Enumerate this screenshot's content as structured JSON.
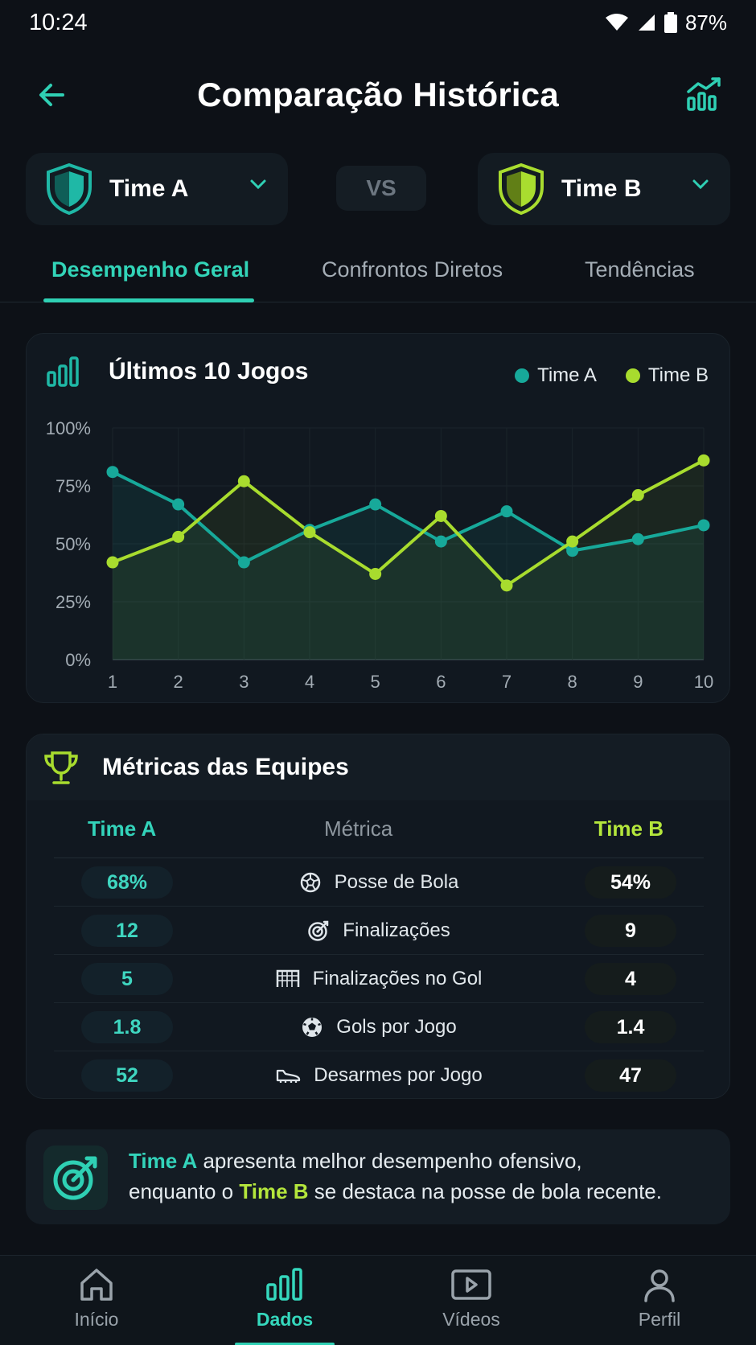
{
  "status_bar": {
    "time": "10:24",
    "battery": "87%"
  },
  "header": {
    "title": "Comparação Histórica",
    "back_icon": "arrow-left-icon",
    "action_icon": "chart-trend-icon"
  },
  "teams": {
    "a": {
      "name": "Time A",
      "color": "#1fb8a6",
      "icon": "shield-icon"
    },
    "vs_label": "VS",
    "b": {
      "name": "Time B",
      "color": "#a9dd2f",
      "icon": "shield-icon"
    }
  },
  "tabs": [
    {
      "label": "Desempenho Geral",
      "active": true
    },
    {
      "label": "Confrontos Diretos",
      "active": false
    },
    {
      "label": "Tendências",
      "active": false
    }
  ],
  "chart_card": {
    "title": "Últimos 10 Jogos",
    "icon": "bar-chart-icon",
    "legend": [
      {
        "label": "Time A",
        "color": "#17a99a"
      },
      {
        "label": "Time B",
        "color": "#a8dc2e"
      }
    ]
  },
  "chart_data": {
    "type": "line",
    "title": "Últimos 10 Jogos",
    "x": [
      1,
      2,
      3,
      4,
      5,
      6,
      7,
      8,
      9,
      10
    ],
    "y_ticks": [
      "0%",
      "25%",
      "50%",
      "75%",
      "100%"
    ],
    "ylim": [
      0,
      100
    ],
    "grid": true,
    "legend_position": "top-right",
    "series": [
      {
        "name": "Time A",
        "color": "#17a99a",
        "values": [
          81,
          67,
          42,
          56,
          67,
          51,
          64,
          47,
          52,
          58
        ]
      },
      {
        "name": "Time B",
        "color": "#a8dc2e",
        "values": [
          42,
          53,
          77,
          55,
          37,
          62,
          32,
          51,
          71,
          86
        ]
      }
    ]
  },
  "metrics": {
    "title": "Métricas das Equipes",
    "icon": "trophy-icon",
    "col_a": "Time A",
    "col_metric": "Métrica",
    "col_b": "Time B",
    "rows": [
      {
        "a": "68%",
        "label": "Posse de Bola",
        "icon": "ball-icon",
        "b": "54%"
      },
      {
        "a": "12",
        "label": "Finalizações",
        "icon": "target-icon",
        "b": "9"
      },
      {
        "a": "5",
        "label": "Finalizações no Gol",
        "icon": "goal-net-icon",
        "b": "4"
      },
      {
        "a": "1.8",
        "label": "Gols por Jogo",
        "icon": "soccer-ball-icon",
        "b": "1.4"
      },
      {
        "a": "52",
        "label": "Desarmes por Jogo",
        "icon": "cleat-icon",
        "b": "47"
      }
    ]
  },
  "insight": {
    "icon": "target-arrow-icon",
    "team_a": "Time A",
    "part1": " apresenta melhor desempenho ofensivo,",
    "part2": "enquanto o ",
    "team_b": "Time B",
    "part3": " se destaca na posse de bola recente."
  },
  "bottom_nav": [
    {
      "label": "Início",
      "icon": "home-icon",
      "active": false
    },
    {
      "label": "Dados",
      "icon": "bar-chart-icon",
      "active": true
    },
    {
      "label": "Vídeos",
      "icon": "video-play-icon",
      "active": false
    },
    {
      "label": "Perfil",
      "icon": "user-icon",
      "active": false
    }
  ]
}
